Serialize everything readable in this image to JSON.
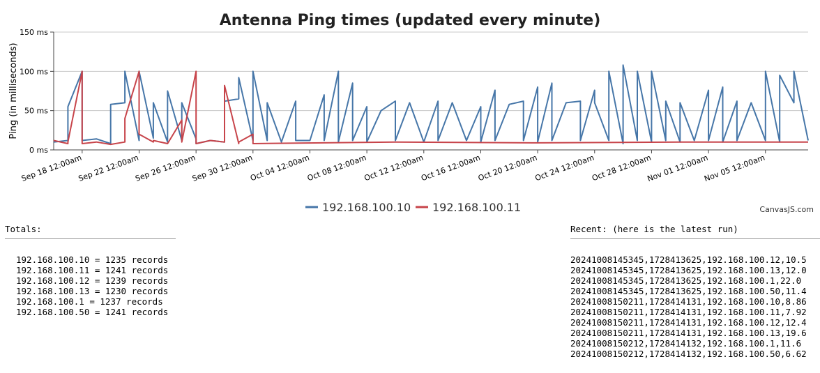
{
  "colors": {
    "series_a": "#4676a8",
    "series_b": "#c7444a",
    "grid": "#c8c8c8",
    "axis": "#444444"
  },
  "chart_data": {
    "type": "line",
    "title": "Antenna Ping times (updated every minute)",
    "ylabel": "Ping (in milliseconds)",
    "ylim": [
      0,
      150
    ],
    "y_ticks": [
      "0 ms",
      "50 ms",
      "100 ms",
      "150 ms"
    ],
    "y_tick_values": [
      0,
      50,
      100,
      150
    ],
    "x_ticks": [
      "Sep 18 12:00am",
      "Sep 22 12:00am",
      "Sep 26 12:00am",
      "Sep 30 12:00am",
      "Oct 04 12:00am",
      "Oct 08 12:00am",
      "Oct 12 12:00am",
      "Oct 16 12:00am",
      "Oct 20 12:00am",
      "Oct 24 12:00am",
      "Oct 28 12:00am",
      "Nov 01 12:00am",
      "Nov 05 12:00am"
    ],
    "x_range": [
      "Sep 16",
      "Nov 08"
    ],
    "grid": true,
    "legend_position": "bottom-center",
    "series": [
      {
        "name": "192.168.100.10",
        "points": [
          [
            "Sep 16",
            10
          ],
          [
            "Sep 17",
            12
          ],
          [
            "Sep 17 12:00",
            55
          ],
          [
            "Sep 18",
            100
          ],
          [
            "Sep 18 12:00",
            12
          ],
          [
            "Sep 19",
            14
          ],
          [
            "Sep 20",
            8
          ],
          [
            "Sep 20 12:00",
            58
          ],
          [
            "Sep 21",
            60
          ],
          [
            "Sep 21 12:00",
            100
          ],
          [
            "Sep 22",
            12
          ],
          [
            "Sep 22 12:00",
            100
          ],
          [
            "Sep 23",
            15
          ],
          [
            "Sep 23 12:00",
            60
          ],
          [
            "Sep 24",
            10
          ],
          [
            "Sep 24 12:00",
            75
          ],
          [
            "Sep 25",
            12
          ],
          [
            "Sep 25 12:00",
            60
          ],
          [
            "Sep 26",
            14
          ],
          [
            "Sep 26 12:00",
            8
          ],
          [
            "Sep 27",
            12
          ],
          [
            "Sep 28",
            10
          ],
          [
            "Sep 28 12:00",
            62
          ],
          [
            "Sep 29",
            65
          ],
          [
            "Sep 29 12:00",
            92
          ],
          [
            "Sep 30",
            12
          ],
          [
            "Sep 30 12:00",
            100
          ],
          [
            "Oct 01",
            12
          ],
          [
            "Oct 01 12:00",
            60
          ],
          [
            "Oct 02",
            10
          ],
          [
            "Oct 03",
            62
          ],
          [
            "Oct 03 12:00",
            12
          ],
          [
            "Oct 04",
            12
          ],
          [
            "Oct 05",
            70
          ],
          [
            "Oct 05 12:00",
            12
          ],
          [
            "Oct 06",
            100
          ],
          [
            "Oct 06 12:00",
            10
          ],
          [
            "Oct 07",
            85
          ],
          [
            "Oct 07 12:00",
            12
          ],
          [
            "Oct 08",
            55
          ],
          [
            "Oct 08 12:00",
            10
          ],
          [
            "Oct 09",
            50
          ],
          [
            "Oct 10",
            62
          ],
          [
            "Oct 10 12:00",
            12
          ],
          [
            "Oct 11",
            60
          ],
          [
            "Oct 12",
            10
          ],
          [
            "Oct 13",
            62
          ],
          [
            "Oct 13 12:00",
            12
          ],
          [
            "Oct 14",
            60
          ],
          [
            "Oct 15",
            12
          ],
          [
            "Oct 16",
            55
          ],
          [
            "Oct 16 12:00",
            10
          ],
          [
            "Oct 17",
            76
          ],
          [
            "Oct 17 12:00",
            12
          ],
          [
            "Oct 18",
            58
          ],
          [
            "Oct 19",
            62
          ],
          [
            "Oct 19 12:00",
            12
          ],
          [
            "Oct 20",
            80
          ],
          [
            "Oct 20 12:00",
            10
          ],
          [
            "Oct 21",
            85
          ],
          [
            "Oct 21 12:00",
            12
          ],
          [
            "Oct 22",
            60
          ],
          [
            "Oct 23",
            62
          ],
          [
            "Oct 23 12:00",
            12
          ],
          [
            "Oct 24",
            76
          ],
          [
            "Oct 24 12:00",
            60
          ],
          [
            "Oct 25",
            12
          ],
          [
            "Oct 25 12:00",
            100
          ],
          [
            "Oct 26",
            8
          ],
          [
            "Oct 26 12:00",
            108
          ],
          [
            "Oct 27",
            12
          ],
          [
            "Oct 27 12:00",
            100
          ],
          [
            "Oct 28",
            10
          ],
          [
            "Oct 28 12:00",
            100
          ],
          [
            "Oct 29",
            12
          ],
          [
            "Oct 29 12:00",
            62
          ],
          [
            "Oct 30",
            10
          ],
          [
            "Oct 30 12:00",
            60
          ],
          [
            "Oct 31",
            12
          ],
          [
            "Nov 01",
            76
          ],
          [
            "Nov 01 12:00",
            12
          ],
          [
            "Nov 02",
            80
          ],
          [
            "Nov 02 12:00",
            10
          ],
          [
            "Nov 03",
            62
          ],
          [
            "Nov 03 12:00",
            12
          ],
          [
            "Nov 04",
            60
          ],
          [
            "Nov 05",
            12
          ],
          [
            "Nov 05 12:00",
            100
          ],
          [
            "Nov 06",
            10
          ],
          [
            "Nov 06 12:00",
            95
          ],
          [
            "Nov 07",
            60
          ],
          [
            "Nov 07 12:00",
            100
          ],
          [
            "Nov 08",
            12
          ]
        ]
      },
      {
        "name": "192.168.100.11",
        "points": [
          [
            "Sep 16",
            12
          ],
          [
            "Sep 17",
            8
          ],
          [
            "Sep 17 12:00",
            10
          ],
          [
            "Sep 18",
            100
          ],
          [
            "Sep 18 12:00",
            8
          ],
          [
            "Sep 19",
            10
          ],
          [
            "Sep 20",
            7
          ],
          [
            "Sep 21",
            10
          ],
          [
            "Sep 21 12:00",
            40
          ],
          [
            "Sep 22",
            100
          ],
          [
            "Sep 22 12:00",
            20
          ],
          [
            "Sep 23",
            10
          ],
          [
            "Sep 23 12:00",
            12
          ],
          [
            "Sep 24",
            8
          ],
          [
            "Sep 25",
            38
          ],
          [
            "Sep 25 12:00",
            10
          ],
          [
            "Sep 26",
            100
          ],
          [
            "Sep 26 12:00",
            8
          ],
          [
            "Sep 27",
            12
          ],
          [
            "Sep 28",
            10
          ],
          [
            "Sep 28 12:00",
            82
          ],
          [
            "Sep 29",
            8
          ],
          [
            "Sep 29 12:00",
            10
          ],
          [
            "Sep 30",
            20
          ],
          [
            "Sep 30 12:00",
            8
          ],
          [
            "Oct 10",
            10
          ],
          [
            "Oct 20",
            9
          ],
          [
            "Oct 30",
            10
          ],
          [
            "Nov 08",
            10
          ]
        ]
      }
    ]
  },
  "credit": "CanvasJS.com",
  "totals": {
    "header": "Totals:",
    "rows": [
      "192.168.100.10 = 1235 records",
      "192.168.100.11 = 1241 records",
      "192.168.100.12 = 1239 records",
      "192.168.100.13 = 1230 records",
      "192.168.100.1 = 1237 records",
      "192.168.100.50 = 1241 records"
    ]
  },
  "recent": {
    "header": "Recent: (here is the latest run)",
    "rows": [
      "20241008145345,1728413625,192.168.100.12,10.5",
      "20241008145345,1728413625,192.168.100.13,12.0",
      "20241008145345,1728413625,192.168.100.1,22.0",
      "20241008145345,1728413625,192.168.100.50,11.4",
      "20241008150211,1728414131,192.168.100.10,8.86",
      "20241008150211,1728414131,192.168.100.11,7.92",
      "20241008150211,1728414131,192.168.100.12,12.4",
      "20241008150211,1728414131,192.168.100.13,19.6",
      "20241008150212,1728414132,192.168.100.1,11.6",
      "20241008150212,1728414132,192.168.100.50,6.62"
    ]
  }
}
